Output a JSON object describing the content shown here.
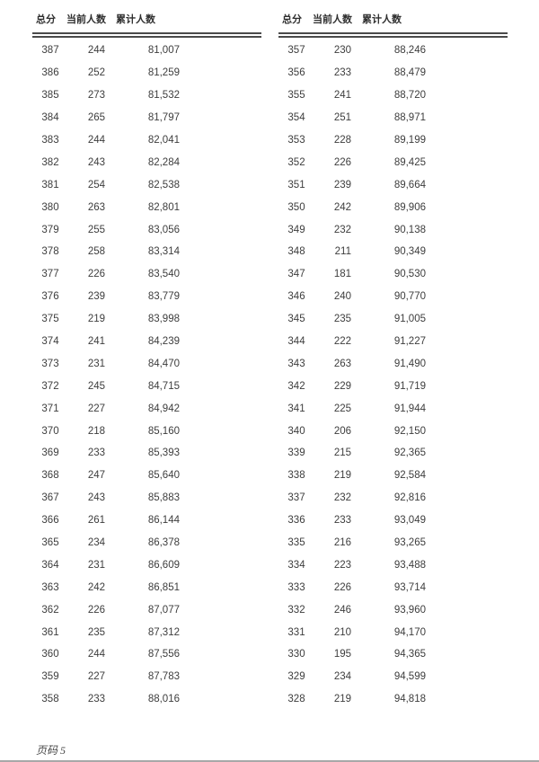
{
  "page": {
    "footer": "页码 5"
  },
  "table": {
    "headers": [
      "总分",
      "当前人数",
      "累计人数"
    ]
  },
  "left_rows": [
    [
      "387",
      "244",
      "81,007"
    ],
    [
      "386",
      "252",
      "81,259"
    ],
    [
      "385",
      "273",
      "81,532"
    ],
    [
      "384",
      "265",
      "81,797"
    ],
    [
      "383",
      "244",
      "82,041"
    ],
    [
      "382",
      "243",
      "82,284"
    ],
    [
      "381",
      "254",
      "82,538"
    ],
    [
      "380",
      "263",
      "82,801"
    ],
    [
      "379",
      "255",
      "83,056"
    ],
    [
      "378",
      "258",
      "83,314"
    ],
    [
      "377",
      "226",
      "83,540"
    ],
    [
      "376",
      "239",
      "83,779"
    ],
    [
      "375",
      "219",
      "83,998"
    ],
    [
      "374",
      "241",
      "84,239"
    ],
    [
      "373",
      "231",
      "84,470"
    ],
    [
      "372",
      "245",
      "84,715"
    ],
    [
      "371",
      "227",
      "84,942"
    ],
    [
      "370",
      "218",
      "85,160"
    ],
    [
      "369",
      "233",
      "85,393"
    ],
    [
      "368",
      "247",
      "85,640"
    ],
    [
      "367",
      "243",
      "85,883"
    ],
    [
      "366",
      "261",
      "86,144"
    ],
    [
      "365",
      "234",
      "86,378"
    ],
    [
      "364",
      "231",
      "86,609"
    ],
    [
      "363",
      "242",
      "86,851"
    ],
    [
      "362",
      "226",
      "87,077"
    ],
    [
      "361",
      "235",
      "87,312"
    ],
    [
      "360",
      "244",
      "87,556"
    ],
    [
      "359",
      "227",
      "87,783"
    ],
    [
      "358",
      "233",
      "88,016"
    ]
  ],
  "right_rows": [
    [
      "357",
      "230",
      "88,246"
    ],
    [
      "356",
      "233",
      "88,479"
    ],
    [
      "355",
      "241",
      "88,720"
    ],
    [
      "354",
      "251",
      "88,971"
    ],
    [
      "353",
      "228",
      "89,199"
    ],
    [
      "352",
      "226",
      "89,425"
    ],
    [
      "351",
      "239",
      "89,664"
    ],
    [
      "350",
      "242",
      "89,906"
    ],
    [
      "349",
      "232",
      "90,138"
    ],
    [
      "348",
      "211",
      "90,349"
    ],
    [
      "347",
      "181",
      "90,530"
    ],
    [
      "346",
      "240",
      "90,770"
    ],
    [
      "345",
      "235",
      "91,005"
    ],
    [
      "344",
      "222",
      "91,227"
    ],
    [
      "343",
      "263",
      "91,490"
    ],
    [
      "342",
      "229",
      "91,719"
    ],
    [
      "341",
      "225",
      "91,944"
    ],
    [
      "340",
      "206",
      "92,150"
    ],
    [
      "339",
      "215",
      "92,365"
    ],
    [
      "338",
      "219",
      "92,584"
    ],
    [
      "337",
      "232",
      "92,816"
    ],
    [
      "336",
      "233",
      "93,049"
    ],
    [
      "335",
      "216",
      "93,265"
    ],
    [
      "334",
      "223",
      "93,488"
    ],
    [
      "333",
      "226",
      "93,714"
    ],
    [
      "332",
      "246",
      "93,960"
    ],
    [
      "331",
      "210",
      "94,170"
    ],
    [
      "330",
      "195",
      "94,365"
    ],
    [
      "329",
      "234",
      "94,599"
    ],
    [
      "328",
      "219",
      "94,818"
    ]
  ],
  "colors": {
    "text": "#3d3d3d",
    "rule": "#4a4a4a",
    "bottom_divider": "#a8a8a8"
  }
}
